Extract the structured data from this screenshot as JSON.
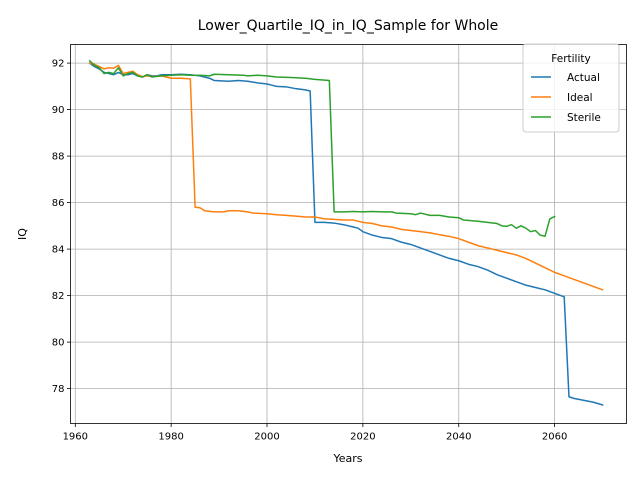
{
  "chart_data": {
    "type": "line",
    "title": "Lower_Quartile_IQ_in_IQ_Sample for Whole",
    "xlabel": "Years",
    "ylabel": "IQ",
    "xlim": [
      1959,
      2075
    ],
    "ylim": [
      76.5,
      92.8
    ],
    "xticks": [
      1960,
      1980,
      2000,
      2020,
      2040,
      2060
    ],
    "yticks": [
      78,
      80,
      82,
      84,
      86,
      88,
      90,
      92
    ],
    "grid": true,
    "legend": {
      "title": "Fertility",
      "placement": "top-right"
    },
    "colors": {
      "Actual": "#1f77b4",
      "Ideal": "#ff7f0e",
      "Sterile": "#2ca02c"
    },
    "series": [
      {
        "name": "Actual",
        "points": [
          [
            1963,
            92.0
          ],
          [
            1964,
            91.85
          ],
          [
            1965,
            91.75
          ],
          [
            1966,
            91.6
          ],
          [
            1967,
            91.55
          ],
          [
            1968,
            91.5
          ],
          [
            1969,
            91.6
          ],
          [
            1970,
            91.5
          ],
          [
            1971,
            91.5
          ],
          [
            1972,
            91.55
          ],
          [
            1973,
            91.45
          ],
          [
            1974,
            91.4
          ],
          [
            1975,
            91.5
          ],
          [
            1976,
            91.45
          ],
          [
            1977,
            91.45
          ],
          [
            1978,
            91.5
          ],
          [
            1980,
            91.5
          ],
          [
            1982,
            91.52
          ],
          [
            1984,
            91.5
          ],
          [
            1986,
            91.45
          ],
          [
            1988,
            91.35
          ],
          [
            1989,
            91.25
          ],
          [
            1992,
            91.22
          ],
          [
            1994,
            91.25
          ],
          [
            1996,
            91.22
          ],
          [
            1998,
            91.15
          ],
          [
            2000,
            91.1
          ],
          [
            2001,
            91.05
          ],
          [
            2002,
            91.0
          ],
          [
            2004,
            90.98
          ],
          [
            2006,
            90.9
          ],
          [
            2008,
            90.85
          ],
          [
            2009,
            90.8
          ],
          [
            2010,
            85.15
          ],
          [
            2012,
            85.15
          ],
          [
            2014,
            85.12
          ],
          [
            2016,
            85.05
          ],
          [
            2018,
            84.95
          ],
          [
            2019,
            84.9
          ],
          [
            2020,
            84.75
          ],
          [
            2022,
            84.6
          ],
          [
            2023,
            84.55
          ],
          [
            2024,
            84.5
          ],
          [
            2026,
            84.45
          ],
          [
            2028,
            84.3
          ],
          [
            2030,
            84.2
          ],
          [
            2032,
            84.05
          ],
          [
            2034,
            83.9
          ],
          [
            2036,
            83.75
          ],
          [
            2038,
            83.6
          ],
          [
            2040,
            83.5
          ],
          [
            2042,
            83.35
          ],
          [
            2044,
            83.25
          ],
          [
            2046,
            83.1
          ],
          [
            2048,
            82.9
          ],
          [
            2050,
            82.75
          ],
          [
            2052,
            82.6
          ],
          [
            2054,
            82.45
          ],
          [
            2056,
            82.35
          ],
          [
            2058,
            82.25
          ],
          [
            2060,
            82.1
          ],
          [
            2062,
            81.95
          ],
          [
            2063,
            77.65
          ],
          [
            2064,
            77.58
          ],
          [
            2066,
            77.5
          ],
          [
            2068,
            77.42
          ],
          [
            2070,
            77.3
          ]
        ]
      },
      {
        "name": "Ideal",
        "points": [
          [
            1963,
            92.0
          ],
          [
            1964,
            91.95
          ],
          [
            1965,
            91.85
          ],
          [
            1966,
            91.75
          ],
          [
            1967,
            91.8
          ],
          [
            1968,
            91.78
          ],
          [
            1969,
            91.9
          ],
          [
            1970,
            91.55
          ],
          [
            1971,
            91.6
          ],
          [
            1972,
            91.65
          ],
          [
            1973,
            91.5
          ],
          [
            1974,
            91.42
          ],
          [
            1975,
            91.45
          ],
          [
            1976,
            91.42
          ],
          [
            1978,
            91.45
          ],
          [
            1980,
            91.35
          ],
          [
            1982,
            91.35
          ],
          [
            1984,
            91.32
          ],
          [
            1985,
            85.8
          ],
          [
            1986,
            85.78
          ],
          [
            1987,
            85.65
          ],
          [
            1989,
            85.6
          ],
          [
            1991,
            85.6
          ],
          [
            1992,
            85.65
          ],
          [
            1994,
            85.65
          ],
          [
            1996,
            85.6
          ],
          [
            1997,
            85.55
          ],
          [
            2000,
            85.52
          ],
          [
            2002,
            85.48
          ],
          [
            2004,
            85.45
          ],
          [
            2006,
            85.42
          ],
          [
            2008,
            85.38
          ],
          [
            2010,
            85.38
          ],
          [
            2012,
            85.3
          ],
          [
            2014,
            85.28
          ],
          [
            2016,
            85.25
          ],
          [
            2018,
            85.25
          ],
          [
            2020,
            85.15
          ],
          [
            2022,
            85.1
          ],
          [
            2024,
            85.0
          ],
          [
            2026,
            84.95
          ],
          [
            2028,
            84.85
          ],
          [
            2030,
            84.8
          ],
          [
            2032,
            84.75
          ],
          [
            2034,
            84.7
          ],
          [
            2036,
            84.62
          ],
          [
            2038,
            84.55
          ],
          [
            2040,
            84.45
          ],
          [
            2042,
            84.3
          ],
          [
            2044,
            84.15
          ],
          [
            2046,
            84.05
          ],
          [
            2048,
            83.95
          ],
          [
            2050,
            83.85
          ],
          [
            2052,
            83.75
          ],
          [
            2054,
            83.6
          ],
          [
            2056,
            83.4
          ],
          [
            2058,
            83.2
          ],
          [
            2060,
            83.0
          ],
          [
            2062,
            82.85
          ],
          [
            2064,
            82.7
          ],
          [
            2066,
            82.55
          ],
          [
            2068,
            82.4
          ],
          [
            2070,
            82.25
          ]
        ]
      },
      {
        "name": "Sterile",
        "points": [
          [
            1963,
            92.1
          ],
          [
            1964,
            91.9
          ],
          [
            1965,
            91.8
          ],
          [
            1966,
            91.55
          ],
          [
            1967,
            91.6
          ],
          [
            1968,
            91.55
          ],
          [
            1969,
            91.8
          ],
          [
            1970,
            91.45
          ],
          [
            1971,
            91.55
          ],
          [
            1972,
            91.6
          ],
          [
            1973,
            91.45
          ],
          [
            1974,
            91.4
          ],
          [
            1975,
            91.5
          ],
          [
            1976,
            91.4
          ],
          [
            1978,
            91.45
          ],
          [
            1980,
            91.48
          ],
          [
            1982,
            91.5
          ],
          [
            1984,
            91.48
          ],
          [
            1986,
            91.48
          ],
          [
            1988,
            91.45
          ],
          [
            1989,
            91.52
          ],
          [
            1992,
            91.5
          ],
          [
            1995,
            91.48
          ],
          [
            1996,
            91.45
          ],
          [
            1998,
            91.48
          ],
          [
            2000,
            91.45
          ],
          [
            2002,
            91.4
          ],
          [
            2005,
            91.38
          ],
          [
            2008,
            91.35
          ],
          [
            2010,
            91.3
          ],
          [
            2013,
            91.25
          ],
          [
            2014,
            85.6
          ],
          [
            2016,
            85.6
          ],
          [
            2018,
            85.62
          ],
          [
            2020,
            85.6
          ],
          [
            2022,
            85.62
          ],
          [
            2024,
            85.6
          ],
          [
            2026,
            85.6
          ],
          [
            2027,
            85.55
          ],
          [
            2030,
            85.52
          ],
          [
            2031,
            85.48
          ],
          [
            2032,
            85.55
          ],
          [
            2034,
            85.45
          ],
          [
            2036,
            85.45
          ],
          [
            2038,
            85.38
          ],
          [
            2040,
            85.35
          ],
          [
            2041,
            85.25
          ],
          [
            2044,
            85.2
          ],
          [
            2046,
            85.15
          ],
          [
            2048,
            85.1
          ],
          [
            2049,
            85.0
          ],
          [
            2050,
            84.98
          ],
          [
            2051,
            85.05
          ],
          [
            2052,
            84.9
          ],
          [
            2053,
            85.0
          ],
          [
            2054,
            84.9
          ],
          [
            2055,
            84.75
          ],
          [
            2056,
            84.8
          ],
          [
            2057,
            84.6
          ],
          [
            2058,
            84.55
          ],
          [
            2059,
            85.3
          ],
          [
            2060,
            85.4
          ]
        ]
      }
    ]
  }
}
